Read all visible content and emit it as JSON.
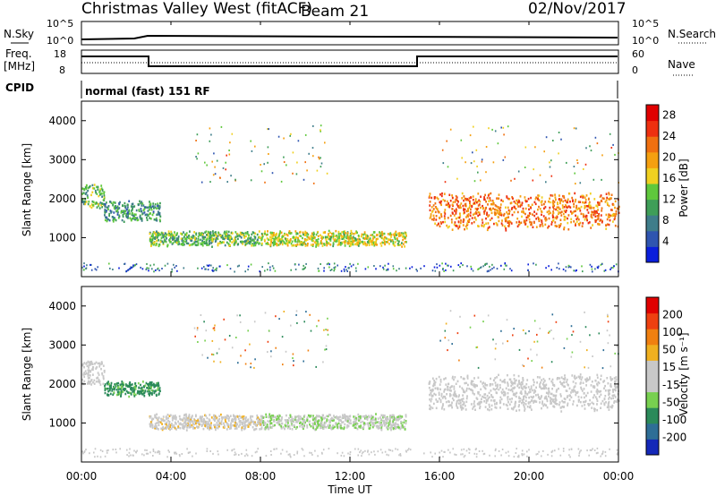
{
  "header": {
    "radar": "Christmas Valley West (fitACF)",
    "beam": "Beam 21",
    "date": "02/Nov/2017"
  },
  "params": {
    "nsky_label": "N.Sky",
    "nsky_ticks": [
      "10^5",
      "10^0"
    ],
    "nsearch_label": "N.Search",
    "nsearch_ticks": [
      "10^5",
      "10^0"
    ],
    "freq_label_1": "Freq.",
    "freq_label_2": "[MHz]",
    "freq_ticks": [
      "18",
      "8"
    ],
    "nave_label": "Nave",
    "nave_ticks": [
      "60",
      "0"
    ],
    "cpid_label": "CPID",
    "cpid_value": "normal (fast) 151 RF"
  },
  "colors": {
    "power": [
      "#0a1edc",
      "#2f55b0",
      "#3f7d8a",
      "#3f9e58",
      "#5fc83c",
      "#f0d020",
      "#f5a010",
      "#f07010",
      "#ee3010",
      "#e00000"
    ],
    "velocity": [
      "#1428b8",
      "#2e6e96",
      "#2b8a5a",
      "#78d050",
      "#c8c8c8",
      "#c8c8c8",
      "#f0b020",
      "#f08010",
      "#ee4010",
      "#e00000"
    ]
  },
  "chart_data": [
    {
      "type": "heatmap",
      "name": "power",
      "ylabel": "Slant Range [km]",
      "yticks": [
        "1000",
        "2000",
        "3000",
        "4000"
      ],
      "ylim": [
        0,
        4500
      ],
      "colorbar_label": "Power [dB]",
      "colorbar_ticks": [
        "4",
        "8",
        "12",
        "16",
        "20",
        "24",
        "28"
      ],
      "clim": [
        0,
        30
      ],
      "echo_bands": [
        {
          "t0": 0.0,
          "t1": 1.0,
          "r_center": 2100,
          "r_width": 500,
          "value": 12
        },
        {
          "t0": 1.0,
          "t1": 3.5,
          "r_center": 1700,
          "r_width": 400,
          "value": 10
        },
        {
          "t0": 3.0,
          "t1": 8.0,
          "r_center": 1000,
          "r_width": 300,
          "value": 12
        },
        {
          "t0": 8.0,
          "t1": 14.5,
          "r_center": 1000,
          "r_width": 300,
          "value": 16
        },
        {
          "t0": 15.5,
          "t1": 24.0,
          "r_center": 1700,
          "r_width": 700,
          "value": 22
        }
      ]
    },
    {
      "type": "heatmap",
      "name": "velocity",
      "ylabel": "Slant Range [km]",
      "xlabel": "Time UT",
      "xticks": [
        "00:00",
        "04:00",
        "08:00",
        "12:00",
        "16:00",
        "20:00",
        "00:00"
      ],
      "yticks": [
        "1000",
        "2000",
        "3000",
        "4000"
      ],
      "ylim": [
        0,
        4500
      ],
      "colorbar_label": "Velocity [m s⁻¹]",
      "colorbar_ticks": [
        "200",
        "100",
        "50",
        "15",
        "-15",
        "-50",
        "-100",
        "-200"
      ],
      "clim": [
        -250,
        250
      ],
      "echo_bands": [
        {
          "t0": 0.0,
          "t1": 1.0,
          "r_center": 2300,
          "r_width": 500,
          "value": 0
        },
        {
          "t0": 1.0,
          "t1": 3.5,
          "r_center": 1900,
          "r_width": 300,
          "value": -120
        },
        {
          "t0": 3.0,
          "t1": 8.0,
          "r_center": 1050,
          "r_width": 300,
          "value": 30
        },
        {
          "t0": 8.0,
          "t1": 14.5,
          "r_center": 1050,
          "r_width": 300,
          "value": -40
        },
        {
          "t0": 15.5,
          "t1": 24.0,
          "r_center": 1800,
          "r_width": 700,
          "value": 0
        }
      ]
    }
  ]
}
